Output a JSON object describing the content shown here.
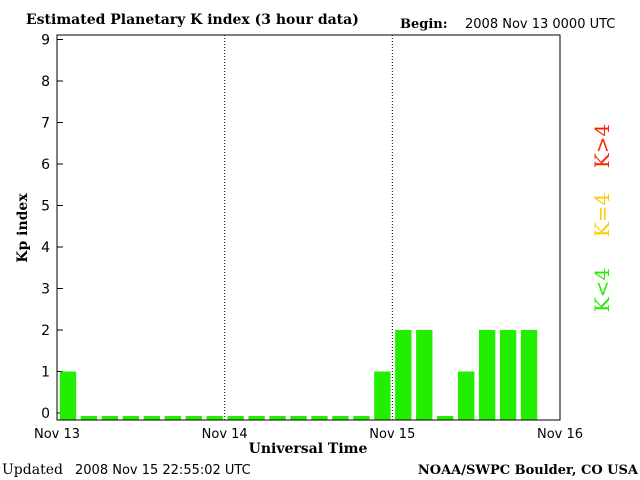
{
  "header": {
    "title": "Estimated Planetary K index (3 hour data)",
    "begin_label": "Begin:",
    "begin_value": "2008 Nov 13 0000 UTC"
  },
  "footer": {
    "updated_label": "Updated",
    "updated_value": "2008 Nov 15 22:55:02 UTC",
    "credit": "NOAA/SWPC Boulder, CO USA"
  },
  "legend": {
    "low": {
      "text": "K<4",
      "color": "#22ee00"
    },
    "mid": {
      "text": "K=4",
      "color": "#ffcc00"
    },
    "high": {
      "text": "K>4",
      "color": "#ff2200"
    }
  },
  "chart_data": {
    "type": "bar",
    "title": "Estimated Planetary K index (3 hour data)",
    "xlabel": "Universal Time",
    "ylabel": "Kp index",
    "ylim": [
      0,
      9
    ],
    "yticks": [
      "0",
      "1",
      "2",
      "3",
      "4",
      "5",
      "6",
      "7",
      "8",
      "9"
    ],
    "day_labels": [
      "Nov 13",
      "Nov 14",
      "Nov 15",
      "Nov 16"
    ],
    "slots_per_day": 8,
    "grid": "vertical dotted day separators",
    "bar_color": "#22ee00",
    "values": [
      1,
      0,
      0,
      0,
      0,
      0,
      0,
      0,
      0,
      0,
      0,
      0,
      0,
      0,
      0,
      1,
      2,
      2,
      0,
      1,
      2,
      2,
      2
    ]
  }
}
